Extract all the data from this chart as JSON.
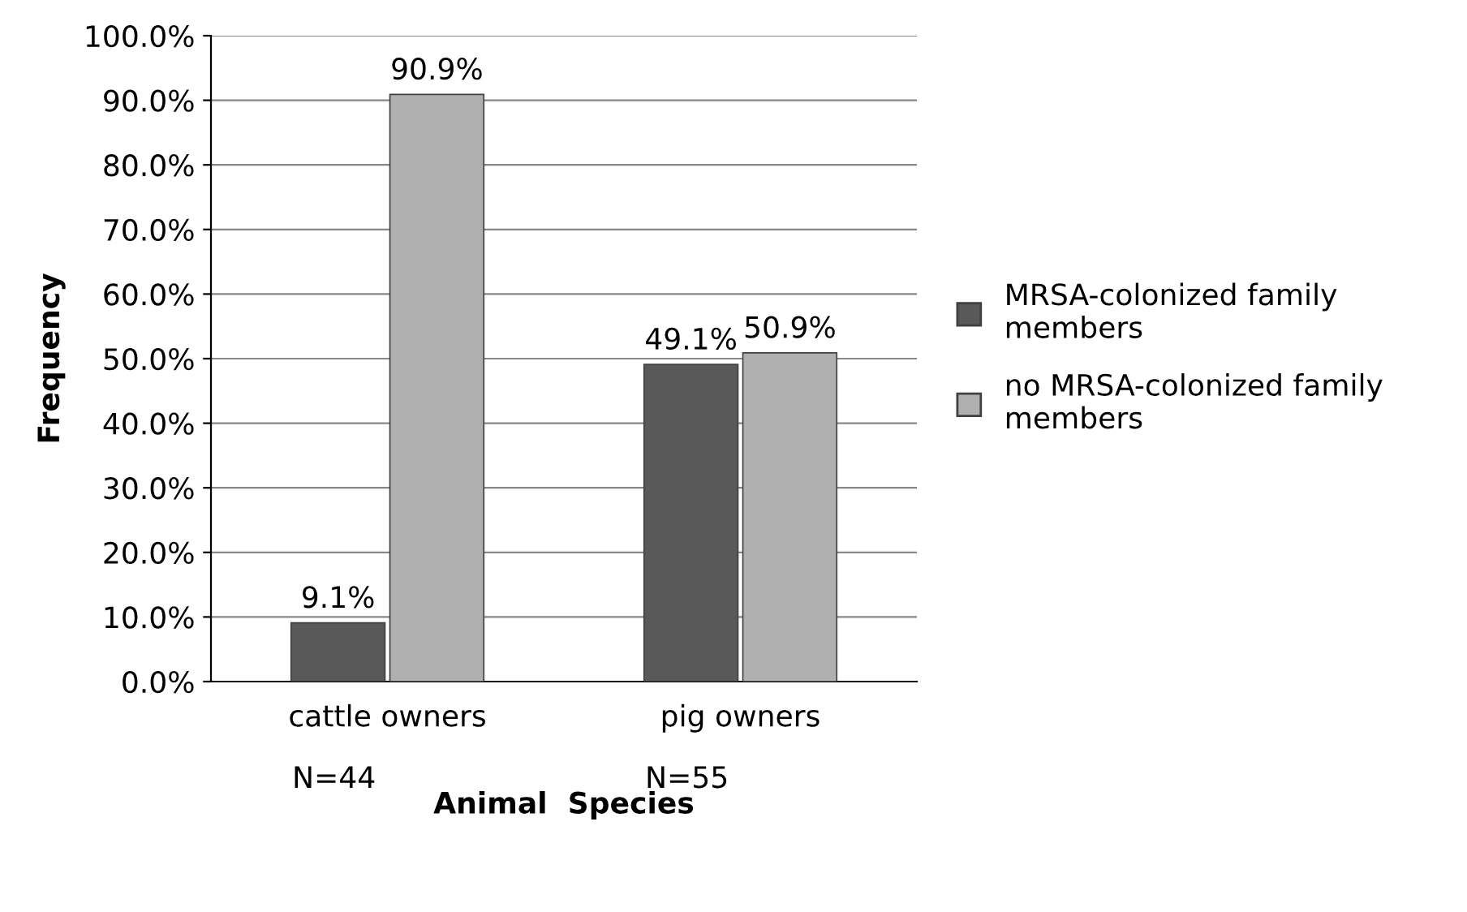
{
  "chart_data": {
    "type": "bar",
    "xlabel": "Animal  Species",
    "ylabel": "Frequency",
    "categories": [
      "cattle owners",
      "pig owners"
    ],
    "series": [
      {
        "name": "MRSA-colonized family members",
        "color": "#595959",
        "values": [
          9.1,
          49.1
        ],
        "value_labels": [
          "9.1%",
          "49.1%"
        ]
      },
      {
        "name": "no MRSA-colonized family members",
        "color": "#b0b0b0",
        "values": [
          90.9,
          50.9
        ],
        "value_labels": [
          "90.9%",
          "50.9%"
        ]
      }
    ],
    "ylim": [
      0,
      100
    ],
    "yticks": [
      {
        "value": 0,
        "label": "0.0%"
      },
      {
        "value": 10,
        "label": "10.0%"
      },
      {
        "value": 20,
        "label": "20.0%"
      },
      {
        "value": 30,
        "label": "30.0%"
      },
      {
        "value": 40,
        "label": "40.0%"
      },
      {
        "value": 50,
        "label": "50.0%"
      },
      {
        "value": 60,
        "label": "60.0%"
      },
      {
        "value": 70,
        "label": "70.0%"
      },
      {
        "value": 80,
        "label": "80.0%"
      },
      {
        "value": 90,
        "label": "90.0%"
      },
      {
        "value": 100,
        "label": "100.0%"
      }
    ],
    "grid": "y",
    "legend": "right",
    "annotations": [
      "N=44",
      "N=55"
    ]
  }
}
